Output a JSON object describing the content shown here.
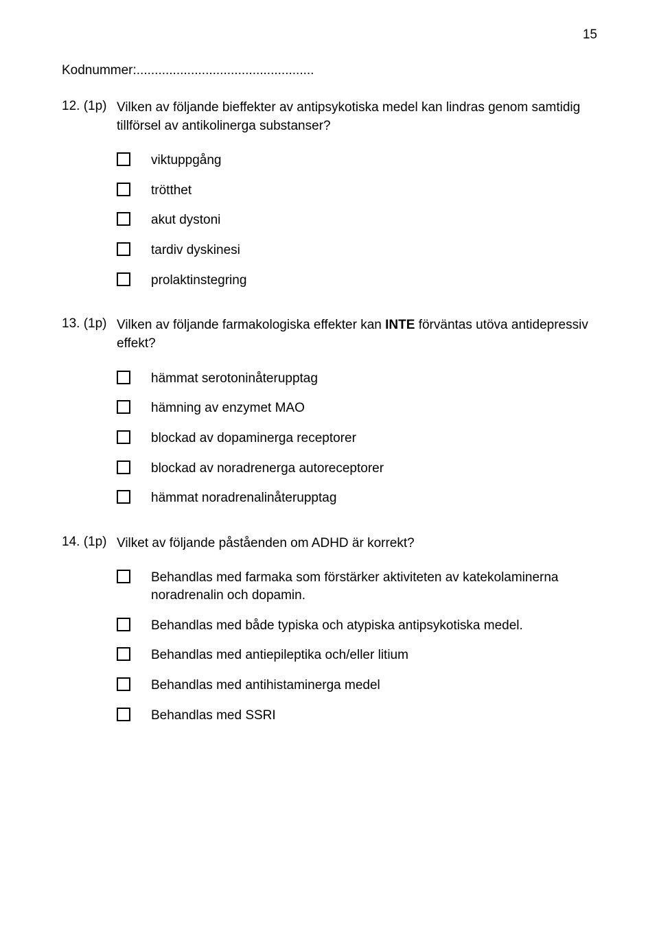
{
  "page_number": "15",
  "kodnummer_label": "Kodnummer:.................................................",
  "questions": [
    {
      "num": "12. (1p)",
      "text": "Vilken av följande bieffekter av antipsykotiska medel kan lindras genom samtidig tillförsel av antikolinerga substanser?",
      "options": [
        "viktuppgång",
        "trötthet",
        "akut dystoni",
        "tardiv dyskinesi",
        "prolaktinstegring"
      ]
    },
    {
      "num": "13. (1p)",
      "text_before_bold": "Vilken av följande farmakologiska effekter kan ",
      "text_bold": "INTE",
      "text_after_bold": " förväntas utöva antidepressiv effekt?",
      "options": [
        "hämmat serotoninåterupptag",
        "hämning av enzymet MAO",
        "blockad av dopaminerga receptorer",
        "blockad av noradrenerga autoreceptorer",
        "hämmat noradrenalinåterupptag"
      ]
    },
    {
      "num": "14. (1p)",
      "text": "Vilket av följande påståenden om ADHD är korrekt?",
      "options": [
        "Behandlas med farmaka som förstärker aktiviteten av katekolaminerna noradrenalin och dopamin.",
        "Behandlas med både typiska och atypiska antipsykotiska medel.",
        "Behandlas med antiepileptika och/eller litium",
        "Behandlas med antihistaminerga medel",
        "Behandlas med SSRI"
      ]
    }
  ]
}
